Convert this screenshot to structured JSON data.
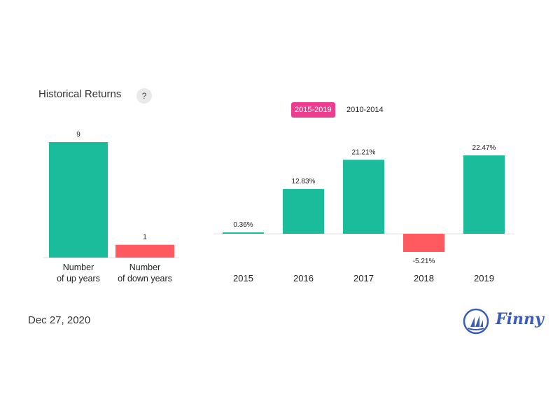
{
  "header": {
    "title": "Historical Returns",
    "help_label": "?",
    "tabs": [
      {
        "label": "2015-2019",
        "active": true
      },
      {
        "label": "2010-2014",
        "active": false
      }
    ]
  },
  "footer": {
    "date": "Dec 27, 2020",
    "logo_text": "Finny"
  },
  "colors": {
    "up": "#1abc9c",
    "down": "#ff5a5f",
    "tab_active": "#ee3d8f",
    "logo": "#3a5bb8"
  },
  "chart_data": [
    {
      "type": "bar",
      "categories": [
        [
          "Number",
          "of up years"
        ],
        [
          "Number",
          "of down years"
        ]
      ],
      "values": [
        9,
        1
      ],
      "labels": [
        "9",
        "1"
      ],
      "ylim": [
        0,
        9
      ]
    },
    {
      "type": "bar",
      "categories": [
        "2015",
        "2016",
        "2017",
        "2018",
        "2019"
      ],
      "values": [
        0.36,
        12.83,
        21.21,
        -5.21,
        22.47
      ],
      "labels": [
        "0.36%",
        "12.83%",
        "21.21%",
        "-5.21%",
        "22.47%"
      ],
      "ylim": [
        -5.21,
        22.47
      ]
    }
  ]
}
